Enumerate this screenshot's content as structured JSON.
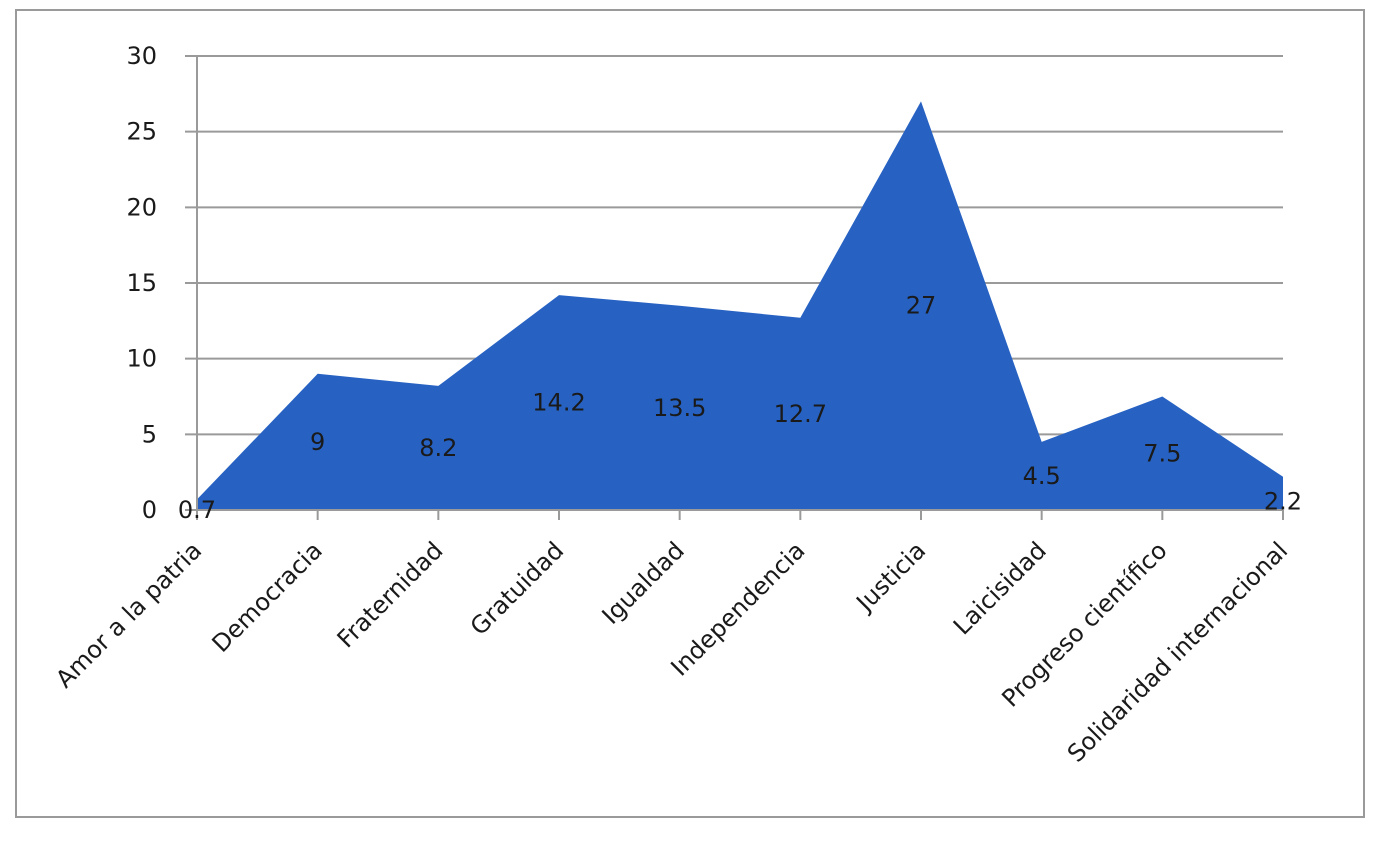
{
  "chart_data": {
    "type": "area",
    "categories": [
      "Amor a la patria",
      "Democracia",
      "Fraternidad",
      "Gratuidad",
      "Igualdad",
      "Independencia",
      "Justicia",
      "Laicisidad",
      "Progreso científico",
      "Solidaridad internacional"
    ],
    "series": [
      {
        "values": [
          0.7,
          9,
          8.2,
          14.2,
          13.5,
          12.7,
          27,
          4.5,
          7.5,
          2.2
        ]
      }
    ],
    "data_labels": [
      "0.7",
      "9",
      "8.2",
      "14.2",
      "13.5",
      "12.7",
      "27",
      "4.5",
      "7.5",
      "2.2"
    ],
    "y_ticks": [
      "0",
      "5",
      "10",
      "15",
      "20",
      "25",
      "30"
    ],
    "ylim": [
      0,
      30
    ],
    "grid": true,
    "legend": "none",
    "title": "",
    "xlabel": "",
    "ylabel": "",
    "colors": {
      "area_fill": "#2762c3",
      "grid": "#9a9a9a",
      "axis": "#9a9a9a",
      "text": "#1a1a1a"
    }
  }
}
